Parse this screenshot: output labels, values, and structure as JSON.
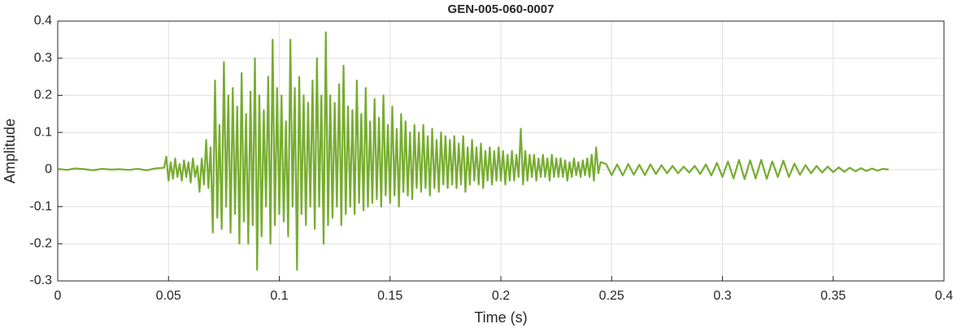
{
  "chart_data": {
    "type": "line",
    "title": "GEN-005-060-0007",
    "x_label": "Time (s)",
    "y_label": "Amplitude",
    "color": "#77ac30",
    "grid": true,
    "xlim": [
      0,
      0.4
    ],
    "xticks": [
      0,
      0.05,
      0.1,
      0.15,
      0.2,
      0.25,
      0.3,
      0.35,
      0.4
    ],
    "ylim": [
      -0.3,
      0.4
    ],
    "yticks": [
      -0.3,
      -0.2,
      -0.1,
      0,
      0.1,
      0.2,
      0.3,
      0.4
    ],
    "x": [
      0,
      0.004,
      0.008,
      0.012,
      0.016,
      0.02,
      0.024,
      0.028,
      0.032,
      0.036,
      0.04,
      0.044,
      0.048,
      0.049,
      0.05,
      0.051,
      0.052,
      0.053,
      0.054,
      0.055,
      0.056,
      0.057,
      0.058,
      0.059,
      0.06,
      0.061,
      0.062,
      0.063,
      0.064,
      0.065,
      0.066,
      0.067,
      0.068,
      0.069,
      0.07,
      0.071,
      0.072,
      0.073,
      0.074,
      0.075,
      0.076,
      0.077,
      0.078,
      0.079,
      0.08,
      0.081,
      0.082,
      0.083,
      0.084,
      0.085,
      0.086,
      0.087,
      0.088,
      0.089,
      0.09,
      0.091,
      0.092,
      0.093,
      0.094,
      0.095,
      0.096,
      0.097,
      0.098,
      0.099,
      0.1,
      0.101,
      0.102,
      0.103,
      0.104,
      0.105,
      0.106,
      0.107,
      0.108,
      0.109,
      0.11,
      0.111,
      0.112,
      0.113,
      0.114,
      0.115,
      0.116,
      0.117,
      0.118,
      0.119,
      0.12,
      0.121,
      0.122,
      0.123,
      0.124,
      0.125,
      0.126,
      0.127,
      0.128,
      0.129,
      0.13,
      0.131,
      0.132,
      0.133,
      0.134,
      0.135,
      0.136,
      0.137,
      0.138,
      0.139,
      0.14,
      0.141,
      0.142,
      0.143,
      0.144,
      0.145,
      0.146,
      0.147,
      0.148,
      0.149,
      0.15,
      0.151,
      0.152,
      0.153,
      0.154,
      0.155,
      0.156,
      0.157,
      0.158,
      0.159,
      0.16,
      0.161,
      0.162,
      0.163,
      0.164,
      0.165,
      0.166,
      0.167,
      0.168,
      0.169,
      0.17,
      0.171,
      0.172,
      0.173,
      0.174,
      0.175,
      0.176,
      0.177,
      0.178,
      0.179,
      0.18,
      0.181,
      0.182,
      0.183,
      0.184,
      0.185,
      0.186,
      0.187,
      0.188,
      0.189,
      0.19,
      0.191,
      0.192,
      0.193,
      0.194,
      0.195,
      0.196,
      0.197,
      0.198,
      0.199,
      0.2,
      0.201,
      0.202,
      0.203,
      0.204,
      0.205,
      0.206,
      0.207,
      0.208,
      0.209,
      0.21,
      0.211,
      0.212,
      0.213,
      0.214,
      0.215,
      0.216,
      0.217,
      0.218,
      0.219,
      0.22,
      0.221,
      0.222,
      0.223,
      0.224,
      0.225,
      0.226,
      0.227,
      0.228,
      0.229,
      0.23,
      0.231,
      0.232,
      0.233,
      0.234,
      0.235,
      0.236,
      0.237,
      0.238,
      0.239,
      0.24,
      0.241,
      0.242,
      0.243,
      0.244,
      0.245,
      0.2475,
      0.25,
      0.2525,
      0.255,
      0.2575,
      0.26,
      0.2625,
      0.265,
      0.2675,
      0.27,
      0.2725,
      0.275,
      0.2775,
      0.28,
      0.2825,
      0.285,
      0.2875,
      0.29,
      0.2925,
      0.295,
      0.2975,
      0.3,
      0.3025,
      0.305,
      0.3075,
      0.31,
      0.3125,
      0.315,
      0.3175,
      0.32,
      0.3225,
      0.325,
      0.3275,
      0.33,
      0.3325,
      0.335,
      0.3375,
      0.34,
      0.3425,
      0.345,
      0.3475,
      0.35,
      0.3525,
      0.355,
      0.3575,
      0.36,
      0.3625,
      0.365,
      0.3675,
      0.37,
      0.3725,
      0.375
    ],
    "values": [
      0.002,
      -0.001,
      0.003,
      0.001,
      -0.002,
      0.002,
      0,
      0.001,
      -0.001,
      0.002,
      -0.002,
      0.003,
      0.005,
      0.035,
      -0.03,
      0.02,
      -0.025,
      0.03,
      -0.02,
      0.015,
      -0.03,
      0.025,
      -0.02,
      0.02,
      -0.035,
      0.03,
      -0.02,
      0.01,
      -0.06,
      0.03,
      -0.04,
      0.08,
      -0.05,
      0.06,
      -0.17,
      0.24,
      -0.13,
      0.12,
      -0.16,
      0.29,
      -0.1,
      0.2,
      -0.17,
      0.22,
      -0.12,
      0.17,
      -0.2,
      0.26,
      -0.14,
      0.15,
      -0.2,
      0.21,
      -0.15,
      0.3,
      -0.27,
      0.2,
      -0.18,
      0.16,
      -0.1,
      0.25,
      -0.2,
      0.35,
      -0.15,
      0.22,
      -0.12,
      0.2,
      -0.14,
      0.13,
      -0.18,
      0.35,
      -0.1,
      0.22,
      -0.27,
      0.25,
      -0.12,
      0.2,
      -0.15,
      0.18,
      -0.1,
      0.24,
      -0.16,
      0.3,
      -0.1,
      0.2,
      -0.2,
      0.37,
      -0.15,
      0.2,
      -0.13,
      0.18,
      -0.1,
      0.23,
      -0.15,
      0.28,
      -0.12,
      0.17,
      -0.1,
      0.16,
      -0.12,
      0.24,
      -0.09,
      0.15,
      -0.11,
      0.22,
      -0.1,
      0.13,
      -0.09,
      0.19,
      -0.08,
      0.14,
      -0.1,
      0.2,
      -0.07,
      0.12,
      -0.09,
      0.17,
      -0.07,
      0.11,
      -0.1,
      0.15,
      -0.06,
      0.13,
      -0.07,
      0.1,
      -0.08,
      0.12,
      -0.05,
      0.1,
      -0.06,
      0.12,
      -0.05,
      0.09,
      -0.07,
      0.11,
      -0.05,
      0.08,
      -0.06,
      0.1,
      -0.04,
      0.09,
      -0.05,
      0.08,
      -0.04,
      0.09,
      -0.05,
      0.07,
      -0.04,
      0.09,
      -0.06,
      0.06,
      -0.04,
      0.08,
      -0.03,
      0.06,
      -0.04,
      0.07,
      -0.05,
      0.05,
      -0.03,
      0.06,
      -0.04,
      0.05,
      -0.03,
      0.06,
      -0.03,
      0.05,
      -0.04,
      0.04,
      -0.03,
      0.05,
      -0.03,
      0.04,
      -0.02,
      0.11,
      -0.04,
      0.05,
      -0.03,
      0.04,
      -0.02,
      0.04,
      -0.03,
      0.03,
      -0.02,
      0.04,
      -0.02,
      0.03,
      -0.03,
      0.04,
      -0.02,
      0.03,
      -0.02,
      0.03,
      -0.02,
      0.025,
      -0.03,
      0.02,
      -0.02,
      0.03,
      -0.015,
      0.02,
      -0.02,
      0.025,
      -0.015,
      0.03,
      -0.02,
      0.04,
      -0.03,
      0.06,
      -0.01,
      0.02,
      0.015,
      -0.015,
      0.014,
      -0.016,
      0.015,
      -0.014,
      0.013,
      -0.015,
      0.014,
      -0.012,
      0.012,
      -0.01,
      0.01,
      -0.01,
      0.008,
      -0.008,
      0.01,
      -0.012,
      0.014,
      -0.016,
      0.018,
      -0.02,
      0.022,
      -0.024,
      0.026,
      -0.026,
      0.025,
      -0.024,
      0.026,
      -0.025,
      0.022,
      -0.02,
      0.024,
      -0.02,
      0.016,
      -0.014,
      0.012,
      -0.01,
      0.01,
      -0.008,
      0.008,
      -0.007,
      0.006,
      -0.006,
      0.005,
      -0.005,
      0.004,
      -0.004,
      0.003,
      -0.003,
      0.002,
      0
    ]
  }
}
